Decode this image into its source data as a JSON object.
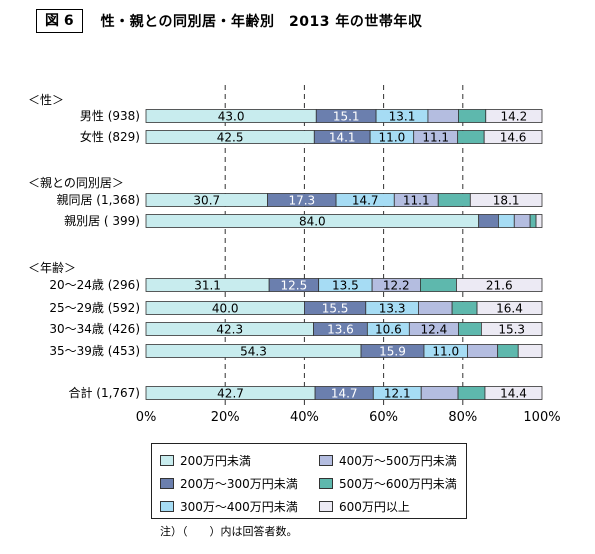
{
  "figure": {
    "label": "図 6",
    "title": "性・親との同別居・年齢別　2013 年の世帯年収",
    "note": "注）（　　）内は回答者数。"
  },
  "colors": {
    "band1": "#c8ecee",
    "band2": "#6b7fae",
    "band3": "#a6dcf4",
    "band4": "#b4bde0",
    "band5": "#5eb8ad",
    "band6": "#eceaf4"
  },
  "chart_data": {
    "type": "bar",
    "orientation": "horizontal",
    "stacked": true,
    "xlim": [
      0,
      100
    ],
    "x_ticks": [
      "0%",
      "20%",
      "40%",
      "60%",
      "80%",
      "100%"
    ],
    "grid": "dashed vertical lines at 20%, 40%, 60%, 80%",
    "legend_position": "bottom",
    "legend": [
      "200万円未満",
      "200万～300万円未満",
      "300万～400万円未満",
      "400万～500万円未満",
      "500万～600万円未満",
      "600万円以上"
    ],
    "group_labels": [
      "＜性＞",
      "＜親との同別居＞",
      "＜年齢＞"
    ],
    "rows": [
      {
        "label": "男性 (938)",
        "values": [
          43.0,
          15.1,
          13.1,
          7.7,
          6.9,
          14.2
        ],
        "labels": [
          "43.0",
          "15.1",
          "13.1",
          "",
          "",
          "14.2"
        ]
      },
      {
        "label": "女性 (829)",
        "values": [
          42.5,
          14.1,
          11.0,
          11.1,
          6.7,
          14.6
        ],
        "labels": [
          "42.5",
          "14.1",
          "11.0",
          "11.1",
          "",
          "14.6"
        ]
      },
      {
        "label": "親同居 (1,368)",
        "values": [
          30.7,
          17.3,
          14.7,
          11.1,
          8.1,
          18.1
        ],
        "labels": [
          "30.7",
          "17.3",
          "14.7",
          "11.1",
          "",
          "18.1"
        ]
      },
      {
        "label": "親別居 ( 399)",
        "values": [
          84.0,
          5.0,
          4.0,
          4.0,
          1.5,
          1.5
        ],
        "labels": [
          "84.0",
          "",
          "",
          "",
          "",
          ""
        ]
      },
      {
        "label": "20～24歳 (296)",
        "values": [
          31.1,
          12.5,
          13.5,
          12.2,
          9.1,
          21.6
        ],
        "labels": [
          "31.1",
          "12.5",
          "13.5",
          "12.2",
          "",
          "21.6"
        ]
      },
      {
        "label": "25～29歳 (592)",
        "values": [
          40.0,
          15.5,
          13.3,
          8.5,
          6.3,
          16.4
        ],
        "labels": [
          "40.0",
          "15.5",
          "13.3",
          "",
          "",
          "16.4"
        ]
      },
      {
        "label": "30～34歳 (426)",
        "values": [
          42.3,
          13.6,
          10.6,
          12.4,
          5.8,
          15.3
        ],
        "labels": [
          "42.3",
          "13.6",
          "10.6",
          "12.4",
          "",
          "15.3"
        ]
      },
      {
        "label": "35～39歳 (453)",
        "values": [
          54.3,
          15.9,
          11.0,
          7.6,
          5.2,
          6.0
        ],
        "labels": [
          "54.3",
          "15.9",
          "11.0",
          "",
          "",
          ""
        ]
      },
      {
        "label": "合計 (1,767)",
        "values": [
          42.7,
          14.7,
          12.1,
          9.3,
          6.8,
          14.4
        ],
        "labels": [
          "42.7",
          "14.7",
          "12.1",
          "",
          "",
          "14.4"
        ]
      }
    ]
  }
}
